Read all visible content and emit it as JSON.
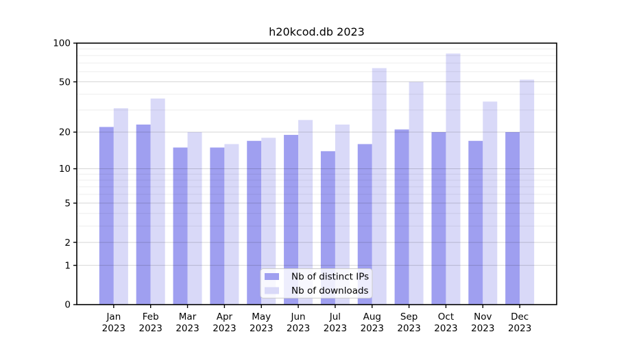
{
  "title": "h20kcod.db 2023",
  "background": "#ffffff",
  "axis_color": "#000000",
  "gridline_major_color": "rgba(0,0,0,0.16)",
  "gridline_minor_color": "rgba(0,0,0,0.07)",
  "chart_data": {
    "type": "bar",
    "title": "h20kcod.db 2023",
    "categories": [
      "Jan",
      "Feb",
      "Mar",
      "Apr",
      "May",
      "Jun",
      "Jul",
      "Aug",
      "Sep",
      "Oct",
      "Nov",
      "Dec"
    ],
    "category_year": "2023",
    "series": [
      {
        "name": "Nb of distinct IPs",
        "color": "#9f9ff0",
        "values": [
          22,
          23,
          15,
          15,
          17,
          19,
          14,
          16,
          21,
          20,
          17,
          20
        ]
      },
      {
        "name": "Nb of downloads",
        "color": "#d9d9f8",
        "values": [
          31,
          37,
          20,
          16,
          18,
          25,
          23,
          64,
          50,
          83,
          35,
          52
        ]
      }
    ],
    "xlabel": "",
    "ylabel": "",
    "yscale": "log1p",
    "ylim": [
      0,
      100
    ],
    "yticks": [
      0,
      1,
      2,
      5,
      10,
      20,
      50,
      100
    ],
    "yticks_minor": [
      3,
      4,
      6,
      7,
      8,
      9,
      30,
      40,
      60,
      70,
      80,
      90
    ],
    "grid": "on",
    "legend_position": "lower center"
  }
}
